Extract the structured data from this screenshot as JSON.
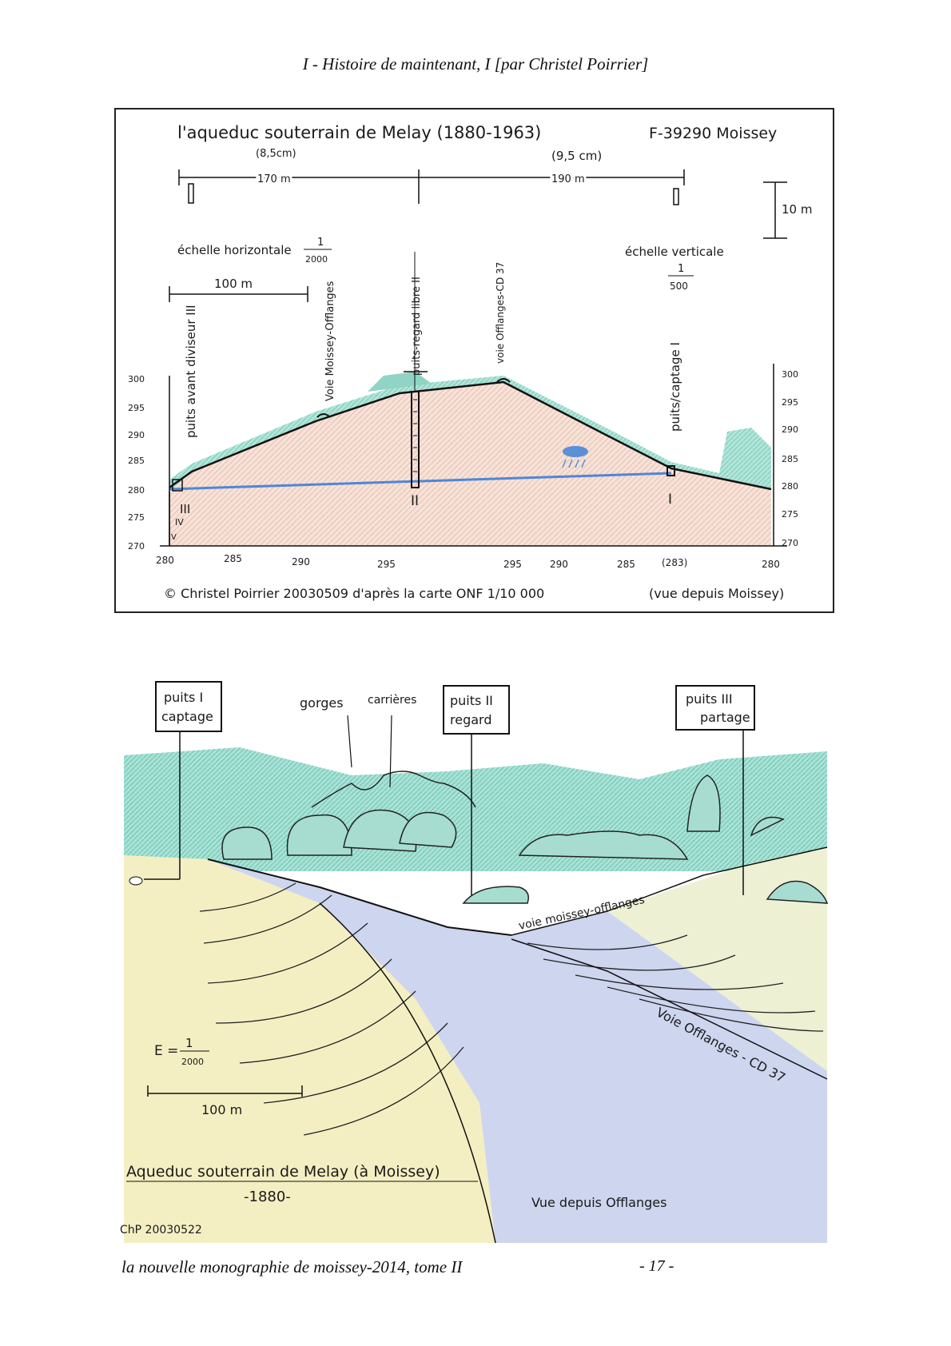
{
  "page": {
    "header": "I - Histoire de maintenant, I [par Christel Poirrier]",
    "footer_title": "la nouvelle monographie de moissey-2014, tome II",
    "page_number": "- 17 -"
  },
  "profile": {
    "title": "l'aqueduc souterrain de Melay (1880-1963)",
    "postcode": "F-39290 Moissey",
    "measure_left_cm": "(8,5cm)",
    "measure_right_cm": "(9,5 cm)",
    "dist_left": "170 m",
    "dist_right": "190 m",
    "vertical_bar": "10 m",
    "scale_h_label": "échelle horizontale",
    "scale_h_num": "1",
    "scale_h_den": "2000",
    "scale_v_label": "échelle verticale",
    "scale_v_num": "1",
    "scale_v_den": "500",
    "bar_100m": "100 m",
    "label_puits_avant": "puits avant diviseur III",
    "label_voie_moissey": "Voie Moissey-Offlanges",
    "label_puits_regard": "puits-regard libre II",
    "label_voie_offlanges": "voie Offlanges-CD 37",
    "label_puits_captage": "puits/captage I",
    "roman_3": "III",
    "roman_2": "II",
    "roman_1": "I",
    "roman_4": "IV",
    "roman_5": "V",
    "y_left": [
      "300",
      "295",
      "290",
      "285",
      "280",
      "275",
      "270"
    ],
    "y_right": [
      "300",
      "295",
      "290",
      "285",
      "280",
      "275",
      "270"
    ],
    "x_ticks": [
      "280",
      "285",
      "290",
      "295",
      "295",
      "290",
      "285",
      "(283)",
      "280"
    ],
    "credit": "© Christel Poirrier 20030509  d'après la carte ONF 1/10 000",
    "view": "(vue depuis Moissey)"
  },
  "landscape": {
    "sign1_line1": "puits I",
    "sign1_line2": "captage",
    "sign2_line1": "puits II",
    "sign2_line2": "regard",
    "sign3_line1": "puits III",
    "sign3_line2": "partage",
    "gorges": "gorges",
    "carrieres": "carrières",
    "voie_mo": "voie moissey-offlanges",
    "voie_of": "Voie Offlanges - CD 37",
    "scale_prefix": "E =",
    "scale_num": "1",
    "scale_den": "2000",
    "bar": "100 m",
    "caption": "Aqueduc souterrain de Melay (à Moissey)",
    "year": "-1880-",
    "view": "Vue depuis Offlanges",
    "signature": "ChP 20030522"
  },
  "colors": {
    "water": "#5b8fd6",
    "grass": "#7fd0c0",
    "soil": "#f0d4c8",
    "sky": "#b8e6dc",
    "field": "#f2ecb4",
    "road": "#c9d2ec"
  }
}
